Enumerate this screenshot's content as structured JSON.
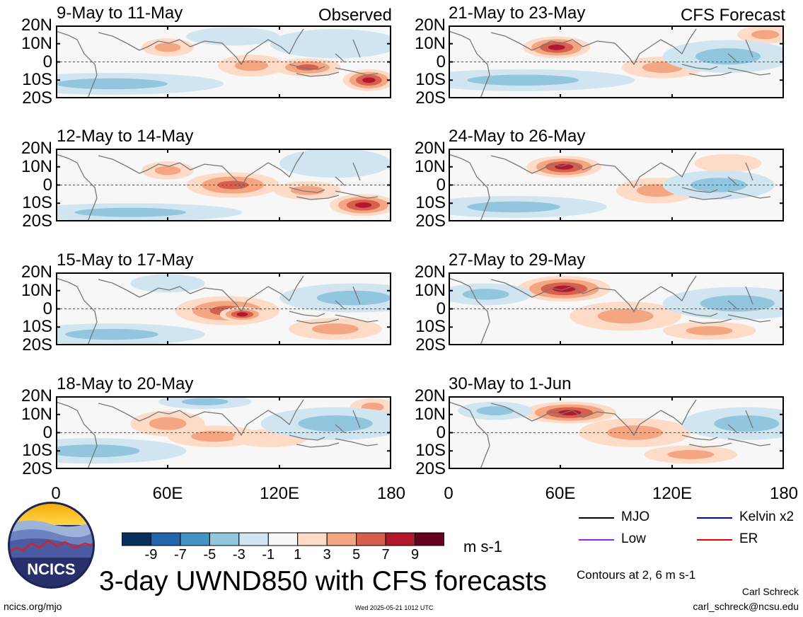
{
  "chart_data": [
    {
      "type": "heatmap",
      "panel": "left-1",
      "title": "9-May to 11-May",
      "tag": "Observed",
      "blobs": [
        {
          "lon": 60,
          "lat": 8,
          "w": 14,
          "h": 5,
          "v": 4
        },
        {
          "lon": 105,
          "lat": -2,
          "w": 18,
          "h": 6,
          "v": 4
        },
        {
          "lon": 135,
          "lat": -3,
          "w": 18,
          "h": 5,
          "v": 5
        },
        {
          "lon": 168,
          "lat": -10,
          "w": 14,
          "h": 6,
          "v": 7
        },
        {
          "lon": 30,
          "lat": -12,
          "w": 60,
          "h": 6,
          "v": -3
        },
        {
          "lon": 95,
          "lat": 14,
          "w": 25,
          "h": 5,
          "v": -2
        },
        {
          "lon": 150,
          "lat": 10,
          "w": 35,
          "h": 8,
          "v": -2
        }
      ]
    },
    {
      "type": "heatmap",
      "panel": "left-2",
      "title": "12-May to 14-May",
      "tag": "",
      "blobs": [
        {
          "lon": 60,
          "lat": 8,
          "w": 14,
          "h": 5,
          "v": 3
        },
        {
          "lon": 95,
          "lat": 0,
          "w": 25,
          "h": 7,
          "v": 5
        },
        {
          "lon": 135,
          "lat": -3,
          "w": 18,
          "h": 5,
          "v": 4
        },
        {
          "lon": 165,
          "lat": -11,
          "w": 18,
          "h": 6,
          "v": 8
        },
        {
          "lon": 40,
          "lat": -15,
          "w": 60,
          "h": 5,
          "v": -3
        },
        {
          "lon": 150,
          "lat": 12,
          "w": 30,
          "h": 8,
          "v": -2
        }
      ]
    },
    {
      "type": "heatmap",
      "panel": "left-3",
      "title": "15-May to 17-May",
      "tag": "",
      "blobs": [
        {
          "lon": 92,
          "lat": -1,
          "w": 28,
          "h": 8,
          "v": 6
        },
        {
          "lon": 100,
          "lat": -3,
          "w": 12,
          "h": 4,
          "v": 8
        },
        {
          "lon": 150,
          "lat": -11,
          "w": 25,
          "h": 6,
          "v": 3
        },
        {
          "lon": 30,
          "lat": -14,
          "w": 50,
          "h": 6,
          "v": -3
        },
        {
          "lon": 160,
          "lat": 6,
          "w": 40,
          "h": 8,
          "v": -3
        },
        {
          "lon": 60,
          "lat": 14,
          "w": 20,
          "h": 5,
          "v": -2
        }
      ]
    },
    {
      "type": "heatmap",
      "panel": "left-4",
      "title": "18-May to 20-May",
      "tag": "",
      "blobs": [
        {
          "lon": 60,
          "lat": 5,
          "w": 20,
          "h": 7,
          "v": 3
        },
        {
          "lon": 85,
          "lat": -2,
          "w": 25,
          "h": 6,
          "v": 3
        },
        {
          "lon": 115,
          "lat": -3,
          "w": 20,
          "h": 5,
          "v": 2
        },
        {
          "lon": 170,
          "lat": 14,
          "w": 12,
          "h": 5,
          "v": 4
        },
        {
          "lon": 80,
          "lat": 17,
          "w": 25,
          "h": 4,
          "v": -4
        },
        {
          "lon": 20,
          "lat": -10,
          "w": 50,
          "h": 7,
          "v": -3
        },
        {
          "lon": 150,
          "lat": 5,
          "w": 40,
          "h": 9,
          "v": -3
        }
      ]
    },
    {
      "type": "heatmap",
      "panel": "right-1",
      "title": "21-May to 23-May",
      "tag": "CFS Forecast",
      "blobs": [
        {
          "lon": 58,
          "lat": 8,
          "w": 18,
          "h": 6,
          "v": 7
        },
        {
          "lon": 115,
          "lat": -3,
          "w": 22,
          "h": 6,
          "v": 3
        },
        {
          "lon": 170,
          "lat": 15,
          "w": 15,
          "h": 5,
          "v": 4
        },
        {
          "lon": 40,
          "lat": -10,
          "w": 60,
          "h": 6,
          "v": -3
        },
        {
          "lon": 150,
          "lat": 3,
          "w": 35,
          "h": 9,
          "v": -3
        }
      ]
    },
    {
      "type": "heatmap",
      "panel": "right-2",
      "title": "24-May to 26-May",
      "tag": "",
      "blobs": [
        {
          "lon": 62,
          "lat": 10,
          "w": 20,
          "h": 6,
          "v": 8
        },
        {
          "lon": 112,
          "lat": -3,
          "w": 22,
          "h": 7,
          "v": 4
        },
        {
          "lon": 150,
          "lat": 12,
          "w": 18,
          "h": 5,
          "v": 2
        },
        {
          "lon": 35,
          "lat": -12,
          "w": 50,
          "h": 6,
          "v": -3
        },
        {
          "lon": 145,
          "lat": 0,
          "w": 30,
          "h": 8,
          "v": -3
        }
      ]
    },
    {
      "type": "heatmap",
      "panel": "right-3",
      "title": "27-May to 29-May",
      "tag": "",
      "blobs": [
        {
          "lon": 62,
          "lat": 11,
          "w": 25,
          "h": 7,
          "v": 8
        },
        {
          "lon": 95,
          "lat": -4,
          "w": 30,
          "h": 8,
          "v": 4
        },
        {
          "lon": 140,
          "lat": -12,
          "w": 25,
          "h": 5,
          "v": 3
        },
        {
          "lon": 20,
          "lat": 8,
          "w": 25,
          "h": 6,
          "v": -3
        },
        {
          "lon": 155,
          "lat": 3,
          "w": 40,
          "h": 9,
          "v": -4
        }
      ]
    },
    {
      "type": "heatmap",
      "panel": "right-4",
      "title": "30-May to 1-Jun",
      "tag": "",
      "blobs": [
        {
          "lon": 65,
          "lat": 11,
          "w": 25,
          "h": 6,
          "v": 8
        },
        {
          "lon": 100,
          "lat": 0,
          "w": 30,
          "h": 8,
          "v": 3
        },
        {
          "lon": 130,
          "lat": -12,
          "w": 25,
          "h": 5,
          "v": 3
        },
        {
          "lon": 25,
          "lat": 12,
          "w": 20,
          "h": 5,
          "v": -3
        },
        {
          "lon": 160,
          "lat": 5,
          "w": 35,
          "h": 9,
          "v": -3
        }
      ]
    }
  ],
  "axes": {
    "x_ticks": [
      "0",
      "60E",
      "120E",
      "180"
    ],
    "x_values": [
      0,
      60,
      120,
      180
    ],
    "y_ticks": [
      "20N",
      "10N",
      "0",
      "10S",
      "20S"
    ],
    "y_values": [
      20,
      10,
      0,
      -10,
      -20
    ],
    "xlim": [
      0,
      180
    ],
    "ylim": [
      -20,
      20
    ]
  },
  "colorbar": {
    "labels": [
      "-9",
      "-7",
      "-5",
      "-3",
      "-1",
      "1",
      "3",
      "5",
      "7",
      "9"
    ],
    "colors": [
      "#08305c",
      "#2166ac",
      "#4393c3",
      "#92c5de",
      "#d1e5f0",
      "#f7f7f7",
      "#fddbc7",
      "#f4a582",
      "#d6604d",
      "#b2182b",
      "#67001f"
    ],
    "units": "m s-1"
  },
  "legend": [
    {
      "label": "MJO",
      "color": "#000000"
    },
    {
      "label": "Kelvin x2",
      "color": "#0000dd"
    },
    {
      "label": "Low",
      "color": "#a020f0"
    },
    {
      "label": "ER",
      "color": "#ee0000"
    }
  ],
  "title": "3-day UWND850 with CFS forecasts",
  "contour_note": "Contours at 2, 6 m s-1",
  "author": "Carl Schreck",
  "email": "carl_schreck@ncsu.edu",
  "site": "ncics.org/mjo",
  "timestamp": "Wed 2025-05-21 1012 UTC",
  "logo_text": "NCICS"
}
